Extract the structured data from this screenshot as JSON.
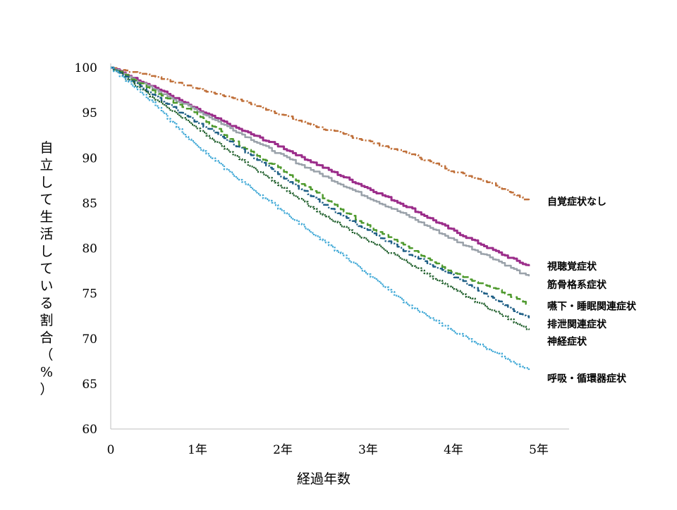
{
  "chart_data": {
    "type": "line",
    "title": "",
    "xlabel": "経過年数",
    "ylabel": "自立して生活している割合（%）",
    "xlim": [
      0,
      5.4
    ],
    "ylim": [
      60,
      100
    ],
    "x_ticks": [
      {
        "value": 0,
        "label": "0"
      },
      {
        "value": 1,
        "label": "1年"
      },
      {
        "value": 2,
        "label": "2年"
      },
      {
        "value": 3,
        "label": "3年"
      },
      {
        "value": 4,
        "label": "4年"
      },
      {
        "value": 5,
        "label": "5年"
      }
    ],
    "y_ticks": [
      60,
      65,
      70,
      75,
      80,
      85,
      90,
      95,
      100
    ],
    "grid": false,
    "legend": "labels at right end of lines",
    "x": [
      0,
      0.5,
      1,
      1.5,
      2,
      2.5,
      3,
      3.5,
      4,
      4.5,
      4.9
    ],
    "series": [
      {
        "name": "自覚症状なし",
        "color": "#C0703A",
        "dash": "2,3,8,3",
        "values": [
          100,
          99.1,
          97.7,
          96.5,
          94.8,
          93.2,
          91.9,
          90.5,
          88.6,
          87.1,
          85.2
        ]
      },
      {
        "name": "視聴覚症状",
        "color": "#9B2D8A",
        "dash": "",
        "values": [
          100,
          97.9,
          95.4,
          93.2,
          91.2,
          88.9,
          86.7,
          84.5,
          82.0,
          79.7,
          78.0
        ]
      },
      {
        "name": "筋骨格系症状",
        "color": "#9AA2AA",
        "dash": "",
        "values": [
          100,
          97.6,
          95.3,
          92.8,
          90.3,
          88.0,
          85.7,
          83.5,
          81.0,
          78.8,
          76.8
        ]
      },
      {
        "name": "嚥下・睡眠関連症状",
        "color": "#4F9A2E",
        "dash": "10,5",
        "values": [
          100,
          97.4,
          94.9,
          91.5,
          88.7,
          85.5,
          82.5,
          80.0,
          77.4,
          75.5,
          73.8
        ]
      },
      {
        "name": "排泄関連症状",
        "color": "#1F5F86",
        "dash": "8,3,2,3",
        "values": [
          100,
          96.9,
          94.0,
          91.2,
          88.0,
          84.8,
          82.0,
          79.4,
          77.0,
          74.3,
          72.2
        ]
      },
      {
        "name": "神経症状",
        "color": "#1E5E2A",
        "dash": "2,2",
        "values": [
          100,
          96.6,
          93.4,
          89.9,
          86.8,
          83.6,
          80.9,
          78.3,
          75.5,
          73.0,
          71.0
        ]
      },
      {
        "name": "呼吸・循環器症状",
        "color": "#3FA8D6",
        "dash": "2,2",
        "values": [
          100,
          96.0,
          91.3,
          87.6,
          84.2,
          80.7,
          77.2,
          73.6,
          70.9,
          68.5,
          66.5
        ]
      }
    ],
    "label_positions_y": [
      85.2,
      78.0,
      76.0,
      73.6,
      71.6,
      69.7,
      65.6
    ]
  }
}
